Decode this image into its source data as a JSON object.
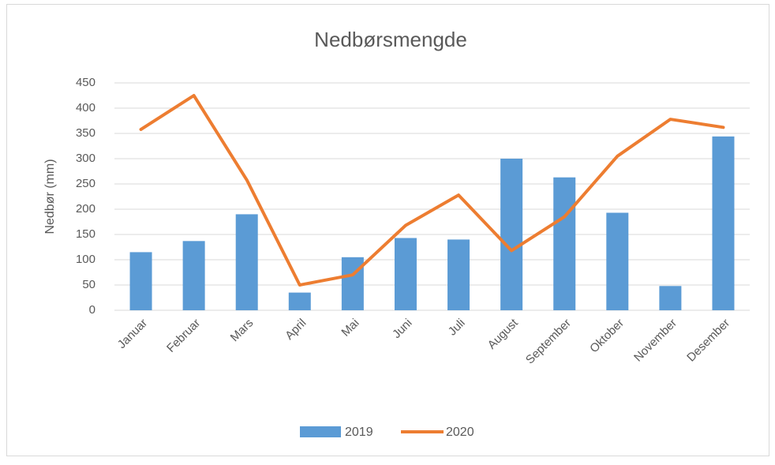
{
  "chart_data": {
    "type": "bar",
    "title": "Nedbørsmengde",
    "y_label": "Nedbør (mm)",
    "categories": [
      "Januar",
      "Februar",
      "Mars",
      "April",
      "Mai",
      "Juni",
      "Juli",
      "August",
      "September",
      "Oktober",
      "November",
      "Desember"
    ],
    "series": [
      {
        "name": "2019",
        "type": "bar",
        "color": "#5b9bd5",
        "values": [
          115,
          137,
          190,
          35,
          105,
          143,
          140,
          300,
          263,
          193,
          48,
          344
        ]
      },
      {
        "name": "2020",
        "type": "line",
        "color": "#ed7d31",
        "values": [
          358,
          425,
          258,
          50,
          70,
          168,
          228,
          118,
          185,
          305,
          378,
          362
        ]
      }
    ],
    "ylim": [
      0,
      450
    ],
    "yticks": [
      0,
      50,
      100,
      150,
      200,
      250,
      300,
      350,
      400,
      450
    ],
    "grid": true,
    "legend": "bottom"
  }
}
